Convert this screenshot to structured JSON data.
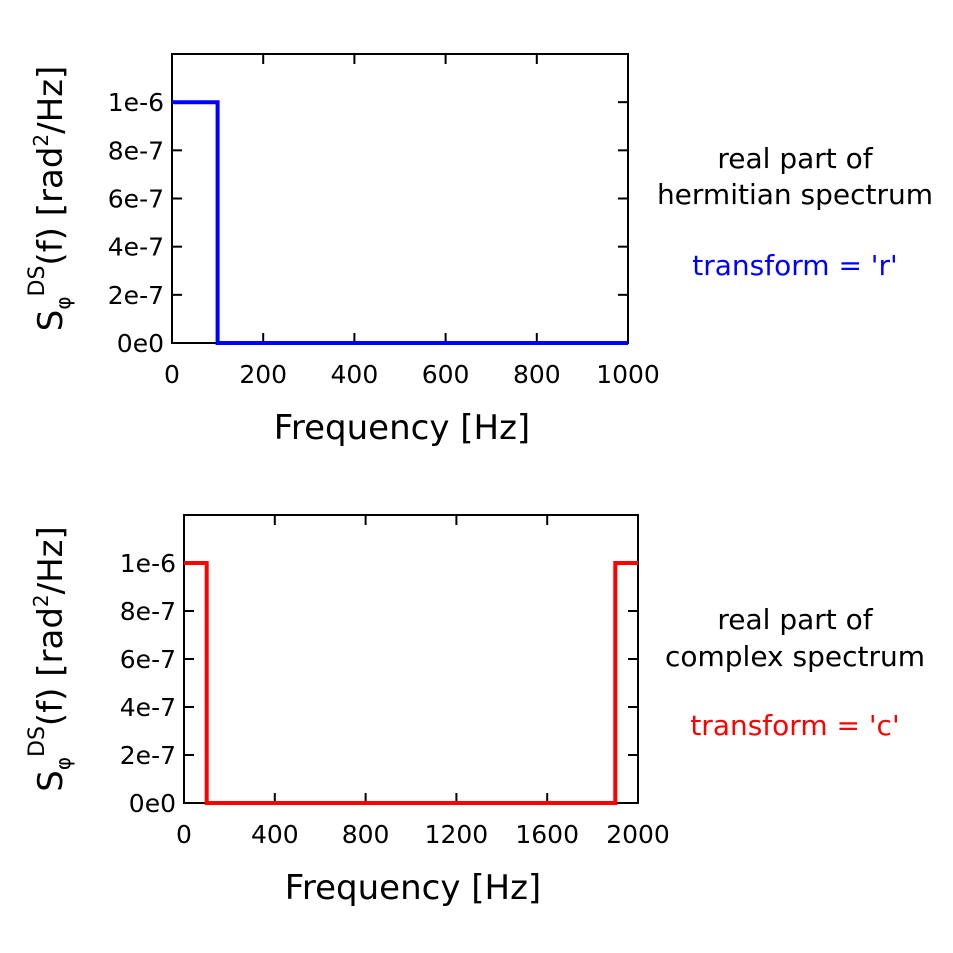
{
  "chart_data": [
    {
      "type": "line",
      "xlabel": "Frequency [Hz]",
      "ylabel": {
        "base": "S",
        "sub": "φ",
        "sup": "DS",
        "arg": "(f) [rad",
        "unit_sup": "2",
        "unit_end": "/Hz]"
      },
      "xlim": [
        0,
        1000
      ],
      "ylim": [
        0,
        1.2e-06
      ],
      "xticks": [
        0,
        200,
        400,
        600,
        800,
        1000
      ],
      "xtick_labels": [
        "0",
        "200",
        "400",
        "600",
        "800",
        "1000"
      ],
      "yticks": [
        0,
        2e-07,
        4e-07,
        6e-07,
        8e-07,
        1e-06
      ],
      "ytick_labels": [
        "0e0",
        "2e-7",
        "4e-7",
        "6e-7",
        "8e-7",
        "1e-6"
      ],
      "grid": false,
      "color": "#0000ff",
      "series": [
        {
          "x": [
            0,
            100,
            100,
            1000
          ],
          "y": [
            1e-06,
            1e-06,
            0,
            0
          ]
        }
      ],
      "annotation": {
        "line1": "real part of",
        "line2": "hermitian spectrum",
        "transform": "transform = 'r'"
      }
    },
    {
      "type": "line",
      "xlabel": "Frequency [Hz]",
      "ylabel": {
        "base": "S",
        "sub": "φ",
        "sup": "DS",
        "arg": "(f) [rad",
        "unit_sup": "2",
        "unit_end": "/Hz]"
      },
      "xlim": [
        0,
        2000
      ],
      "ylim": [
        0,
        1.2e-06
      ],
      "xticks": [
        0,
        400,
        800,
        1200,
        1600,
        2000
      ],
      "xtick_labels": [
        "0",
        "400",
        "800",
        "1200",
        "1600",
        "2000"
      ],
      "yticks": [
        0,
        2e-07,
        4e-07,
        6e-07,
        8e-07,
        1e-06
      ],
      "ytick_labels": [
        "0e0",
        "2e-7",
        "4e-7",
        "6e-7",
        "8e-7",
        "1e-6"
      ],
      "grid": false,
      "color": "#ff0000",
      "series": [
        {
          "x": [
            0,
            100,
            100,
            1900,
            1900,
            2000
          ],
          "y": [
            1e-06,
            1e-06,
            0,
            0,
            1e-06,
            1e-06
          ]
        }
      ],
      "annotation": {
        "line1": "real part of",
        "line2": "complex spectrum",
        "transform": "transform = 'c'"
      }
    }
  ]
}
